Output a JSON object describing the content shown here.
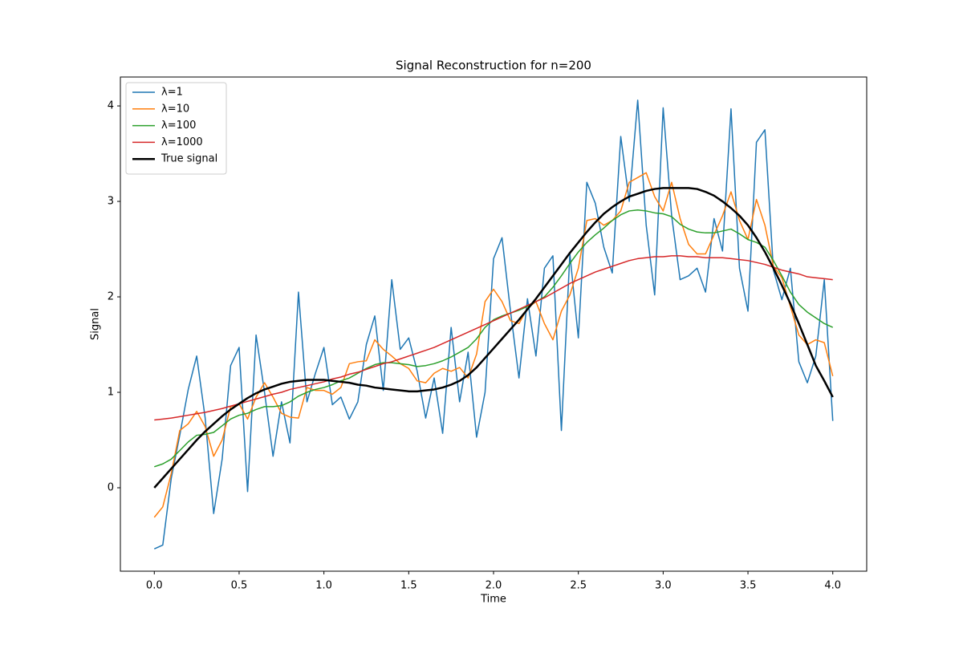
{
  "chart_data": {
    "type": "line",
    "title": "Signal Reconstruction for n=200",
    "xlabel": "Time",
    "ylabel": "Signal",
    "x": [
      0,
      0.05,
      0.1,
      0.15,
      0.2,
      0.25,
      0.3,
      0.35,
      0.4,
      0.45,
      0.5,
      0.55,
      0.6,
      0.65,
      0.7,
      0.75,
      0.8,
      0.85,
      0.9,
      0.95,
      1.0,
      1.05,
      1.1,
      1.15,
      1.2,
      1.25,
      1.3,
      1.35,
      1.4,
      1.45,
      1.5,
      1.55,
      1.6,
      1.65,
      1.7,
      1.75,
      1.8,
      1.85,
      1.9,
      1.95,
      2.0,
      2.05,
      2.1,
      2.15,
      2.2,
      2.25,
      2.3,
      2.35,
      2.4,
      2.45,
      2.5,
      2.55,
      2.6,
      2.65,
      2.7,
      2.75,
      2.8,
      2.85,
      2.9,
      2.95,
      3.0,
      3.05,
      3.1,
      3.15,
      3.2,
      3.25,
      3.3,
      3.35,
      3.4,
      3.45,
      3.5,
      3.55,
      3.6,
      3.65,
      3.7,
      3.75,
      3.8,
      3.85,
      3.9,
      3.95,
      4.0
    ],
    "series": [
      {
        "name": "λ=1",
        "color": "#1f77b4",
        "width": 1.5,
        "values": [
          -0.64,
          -0.6,
          0.1,
          0.55,
          1.03,
          1.38,
          0.73,
          -0.27,
          0.3,
          1.28,
          1.47,
          -0.04,
          1.6,
          1.0,
          0.33,
          0.9,
          0.47,
          2.05,
          0.9,
          1.2,
          1.47,
          0.87,
          0.95,
          0.72,
          0.9,
          1.5,
          1.8,
          1.02,
          2.18,
          1.45,
          1.57,
          1.22,
          0.73,
          1.15,
          0.57,
          1.68,
          0.9,
          1.42,
          0.53,
          1.0,
          2.4,
          2.62,
          1.85,
          1.15,
          1.98,
          1.38,
          2.3,
          2.43,
          0.6,
          2.45,
          1.57,
          3.2,
          2.98,
          2.52,
          2.25,
          3.68,
          3.0,
          4.06,
          2.75,
          2.02,
          3.98,
          2.85,
          2.18,
          2.22,
          2.3,
          2.05,
          2.82,
          2.48,
          3.97,
          2.3,
          1.85,
          3.62,
          3.75,
          2.28,
          1.97,
          2.3,
          1.32,
          1.1,
          1.38,
          2.18,
          0.7
        ]
      },
      {
        "name": "λ=10",
        "color": "#ff7f0e",
        "width": 1.5,
        "values": [
          -0.31,
          -0.2,
          0.15,
          0.6,
          0.67,
          0.8,
          0.64,
          0.33,
          0.5,
          0.85,
          0.88,
          0.72,
          0.95,
          1.1,
          0.95,
          0.78,
          0.74,
          0.73,
          1.05,
          1.02,
          1.02,
          0.98,
          1.05,
          1.3,
          1.32,
          1.33,
          1.55,
          1.45,
          1.38,
          1.3,
          1.25,
          1.12,
          1.1,
          1.2,
          1.25,
          1.22,
          1.26,
          1.15,
          1.4,
          1.95,
          2.08,
          1.95,
          1.75,
          1.72,
          1.88,
          1.95,
          1.72,
          1.55,
          1.85,
          2.02,
          2.3,
          2.8,
          2.82,
          2.75,
          2.8,
          2.9,
          3.2,
          3.25,
          3.3,
          3.05,
          2.9,
          3.2,
          2.82,
          2.55,
          2.45,
          2.45,
          2.65,
          2.85,
          3.1,
          2.8,
          2.6,
          3.02,
          2.75,
          2.32,
          2.2,
          1.9,
          1.6,
          1.5,
          1.55,
          1.52,
          1.17
        ]
      },
      {
        "name": "λ=100",
        "color": "#2ca02c",
        "width": 1.5,
        "values": [
          0.22,
          0.25,
          0.3,
          0.39,
          0.48,
          0.55,
          0.56,
          0.58,
          0.65,
          0.72,
          0.76,
          0.78,
          0.82,
          0.85,
          0.85,
          0.86,
          0.9,
          0.96,
          1.0,
          1.03,
          1.05,
          1.08,
          1.12,
          1.15,
          1.2,
          1.25,
          1.29,
          1.31,
          1.31,
          1.3,
          1.29,
          1.27,
          1.28,
          1.3,
          1.33,
          1.37,
          1.42,
          1.47,
          1.56,
          1.68,
          1.76,
          1.8,
          1.83,
          1.86,
          1.9,
          1.95,
          2.0,
          2.1,
          2.22,
          2.35,
          2.47,
          2.57,
          2.65,
          2.72,
          2.8,
          2.86,
          2.9,
          2.91,
          2.9,
          2.88,
          2.87,
          2.84,
          2.76,
          2.71,
          2.68,
          2.67,
          2.67,
          2.69,
          2.71,
          2.66,
          2.6,
          2.57,
          2.52,
          2.38,
          2.22,
          2.05,
          1.92,
          1.84,
          1.78,
          1.72,
          1.68
        ]
      },
      {
        "name": "λ=1000",
        "color": "#d62728",
        "width": 1.5,
        "values": [
          0.71,
          0.72,
          0.73,
          0.745,
          0.76,
          0.775,
          0.79,
          0.81,
          0.83,
          0.855,
          0.88,
          0.905,
          0.93,
          0.955,
          0.98,
          1.0,
          1.03,
          1.05,
          1.07,
          1.09,
          1.11,
          1.14,
          1.16,
          1.19,
          1.21,
          1.24,
          1.27,
          1.3,
          1.32,
          1.35,
          1.38,
          1.41,
          1.44,
          1.47,
          1.51,
          1.55,
          1.59,
          1.63,
          1.67,
          1.71,
          1.75,
          1.79,
          1.83,
          1.87,
          1.91,
          1.95,
          1.99,
          2.04,
          2.09,
          2.14,
          2.18,
          2.22,
          2.26,
          2.29,
          2.32,
          2.35,
          2.38,
          2.4,
          2.41,
          2.42,
          2.42,
          2.43,
          2.43,
          2.42,
          2.42,
          2.41,
          2.41,
          2.41,
          2.4,
          2.39,
          2.38,
          2.36,
          2.34,
          2.31,
          2.28,
          2.26,
          2.24,
          2.21,
          2.2,
          2.19,
          2.18
        ]
      },
      {
        "name": "True signal",
        "color": "#000000",
        "width": 2.5,
        "values": [
          0,
          0.1,
          0.2,
          0.3,
          0.4,
          0.5,
          0.59,
          0.67,
          0.75,
          0.82,
          0.88,
          0.94,
          0.99,
          1.03,
          1.06,
          1.09,
          1.11,
          1.12,
          1.13,
          1.13,
          1.13,
          1.12,
          1.11,
          1.1,
          1.08,
          1.07,
          1.05,
          1.04,
          1.03,
          1.02,
          1.01,
          1.01,
          1.02,
          1.03,
          1.05,
          1.08,
          1.12,
          1.18,
          1.26,
          1.36,
          1.46,
          1.56,
          1.66,
          1.76,
          1.87,
          1.98,
          2.1,
          2.22,
          2.34,
          2.46,
          2.57,
          2.68,
          2.78,
          2.87,
          2.94,
          3.0,
          3.05,
          3.08,
          3.11,
          3.13,
          3.14,
          3.14,
          3.14,
          3.14,
          3.13,
          3.1,
          3.06,
          3.0,
          2.93,
          2.85,
          2.75,
          2.62,
          2.47,
          2.3,
          2.12,
          1.93,
          1.72,
          1.5,
          1.28,
          1.12,
          0.95
        ]
      }
    ],
    "xlim": [
      -0.2,
      4.2
    ],
    "ylim": [
      -0.874,
      4.303
    ],
    "xticks": [
      {
        "value": 0,
        "label": "0.0"
      },
      {
        "value": 0.5,
        "label": "0.5"
      },
      {
        "value": 1,
        "label": "1.0"
      },
      {
        "value": 1.5,
        "label": "1.5"
      },
      {
        "value": 2,
        "label": "2.0"
      },
      {
        "value": 2.5,
        "label": "2.5"
      },
      {
        "value": 3,
        "label": "3.0"
      },
      {
        "value": 3.5,
        "label": "3.5"
      },
      {
        "value": 4,
        "label": "4.0"
      }
    ],
    "yticks": [
      0,
      1,
      2,
      3,
      4
    ],
    "grid": false,
    "legend": "upper left"
  }
}
